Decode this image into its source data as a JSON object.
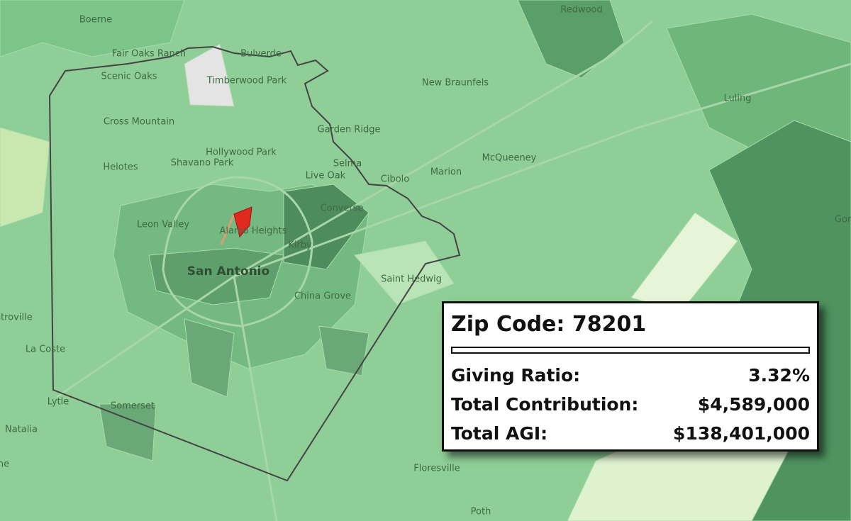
{
  "places": [
    "Boerne",
    "Redwood",
    "Fair Oaks Ranch",
    "Bulverde",
    "Scenic Oaks",
    "Timberwood Park",
    "New Braunfels",
    "Luling",
    "Cross Mountain",
    "Garden Ridge",
    "Hollywood Park",
    "Shavano Park",
    "Selma",
    "McQueeney",
    "Helotes",
    "Live Oak",
    "Cibolo",
    "Marion",
    "Converse",
    "Leon Valley",
    "Alamo Heights",
    "Kirby",
    "San Antonio",
    "Saint Hedwig",
    "China Grove",
    "Gon",
    "stroville",
    "La Coste",
    "Lytle",
    "Somerset",
    "Natalia",
    "ne",
    "Floresville",
    "Poth"
  ],
  "info_box": {
    "title": "Zip Code: 78201",
    "rows": [
      [
        "Giving Ratio:",
        "3.32%"
      ],
      [
        "Total Contribution:",
        "$4,589,000"
      ],
      [
        "Total AGI:",
        "$138,401,000"
      ]
    ]
  }
}
